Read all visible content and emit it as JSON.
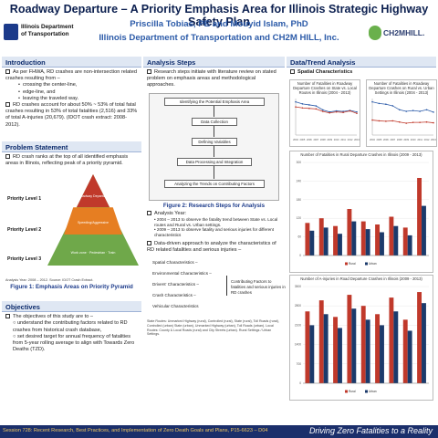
{
  "header": {
    "title": "Roadway Departure – A Priority Emphasis Area for Illinois Strategic Highway Safety Plan",
    "authors": "Priscilla Tobias, PE and Mouyid Islam, PhD",
    "affiliation": "Illinois Department of Transportation and CH2M HILL, Inc.",
    "logo_left_line1": "Illinois Department",
    "logo_left_line2": "of Transportation",
    "logo_right": "CH2MHILL."
  },
  "introduction": {
    "heading": "Introduction",
    "p1": "As per FHWA, RD crashes are non-intersection related crashes resulting from –",
    "bullets": [
      "crossing the center-line,",
      "edge-line, and",
      "leaving the traveled way."
    ],
    "p2": "RD crashes account for about 50% ~ 53% of total fatal crashes resulting in 53% of total fatalities (2,516) and 33% of total A-injuries (20,679). (IDOT crash extract: 2008-2012)."
  },
  "problem": {
    "heading": "Problem Statement",
    "p1": "RD crash ranks at the top of all identified emphasis areas in Illinois, reflecting peak of a priority pyramid.",
    "level1": "Priority Level 1",
    "level2": "Priority Level 2",
    "level3": "Priority Level 3",
    "pyr_top": "Roadway Departure",
    "pyr_mid": "Speeding/Aggressive",
    "pyr_base": "Work zone · Pedestrian · Train",
    "source": "Analysis Year: 2008 – 2012. Source: IDOT Crash Extract.",
    "figure_caption": "Figure 1: Emphasis Areas on Priority Pyramid"
  },
  "objectives": {
    "heading": "Objectives",
    "intro": "The objectives of this study are to –",
    "o1": "understand the contributing factors related to RD crashes from historical crash database,",
    "o2": "set desired target for annual frequency of fatalities from 5-year rolling average to align with Towards Zero Deaths (TZD)."
  },
  "analysis": {
    "heading": "Analysis Steps",
    "p1": "Research steps initiate with literature review on stated problem on emphasis areas and methodological approaches.",
    "steps": [
      "Identifying the Potential Emphasis Area",
      "Data Collection",
      "Defining Variables",
      "Data Processing and Integration",
      "Analyzing the Trends on Contributing Factors"
    ],
    "figure_caption": "Figure 2: Research Steps for Analysis",
    "year_head": "Analysis Year:",
    "year_bullets": [
      "2004 – 2013 to observe the fatality trend between State vs. Local routes and Rural vs. Urban settings.",
      "2009 – 2013 to observe fatality and serious injuries for different characteristics"
    ],
    "driven": "Data-driven approach to analyze the characteristics of RD related fatalities and serious injuries –",
    "characteristics": [
      "Spatial Characteristics –",
      "Environmental Characteristics –",
      "Drivers' Characteristics –",
      "Crash Characteristics –",
      "Vehicular Characteristics"
    ],
    "contributing": "Contributing Factors to fatalities and serious injuries in RD crashes",
    "notes": "State Routes: Unmarked Highway (rural), Controlled (rural), State (rural), Toll Roads (rural), Controlled (urban) State (urban), Unmarked Highway (urban), Toll Roads (urban). Local Routes: County & Local Roads (rural) and City Streets (urban). Rural Settings / Urban Settings."
  },
  "trend": {
    "heading": "Data/Trend Analysis",
    "sub": "Spatial Characteristics"
  },
  "chart_data": [
    {
      "type": "line",
      "title": "Number of Fatalities in Roadway Departure Crashes on State vs. Local Routes in Illinois (2004 - 2013)",
      "x": [
        "2004",
        "2005",
        "2006",
        "2007",
        "2008",
        "2009",
        "2010",
        "2011",
        "2012",
        "2013"
      ],
      "series": [
        {
          "name": "State",
          "values": [
            330,
            310,
            300,
            290,
            250,
            230,
            240,
            235,
            245,
            230
          ]
        },
        {
          "name": "Local",
          "values": [
            280,
            270,
            265,
            260,
            235,
            220,
            230,
            225,
            240,
            215
          ]
        }
      ]
    },
    {
      "type": "line",
      "title": "Number of Fatalities in Roadway Departure Crashes on Rural vs. Urban Settings in Illinois (2004 - 2013)",
      "x": [
        "2004",
        "2005",
        "2006",
        "2007",
        "2008",
        "2009",
        "2010",
        "2011",
        "2012",
        "2013"
      ],
      "series": [
        {
          "name": "Rural",
          "values": [
            420,
            400,
            390,
            370,
            320,
            300,
            310,
            300,
            320,
            290
          ]
        },
        {
          "name": "Urban",
          "values": [
            190,
            180,
            175,
            180,
            165,
            150,
            160,
            160,
            165,
            155
          ]
        }
      ]
    },
    {
      "type": "bar",
      "title": "Number of Fatalities in Rural Departure Crashes in Illinois (2009 - 2013)",
      "categories": [
        "A",
        "B",
        "C",
        "D",
        "E",
        "F",
        "G",
        "H",
        "I"
      ],
      "series": [
        {
          "name": "Rural",
          "values": [
            105,
            120,
            95,
            150,
            110,
            100,
            125,
            90,
            250
          ]
        },
        {
          "name": "Urban",
          "values": [
            80,
            90,
            70,
            110,
            85,
            75,
            95,
            65,
            160
          ]
        }
      ],
      "ylim": [
        0,
        300
      ]
    },
    {
      "type": "bar",
      "title": "Number of A-injuries in Road Departure Crashes in Illinois (2009 - 2013)",
      "categories": [
        "A",
        "B",
        "C",
        "D",
        "E",
        "F",
        "G",
        "H",
        "I"
      ],
      "series": [
        {
          "name": "Rural",
          "values": [
            2600,
            3000,
            2400,
            3200,
            2800,
            2500,
            3100,
            2300,
            3300
          ]
        },
        {
          "name": "Urban",
          "values": [
            2100,
            2500,
            2000,
            2700,
            2300,
            2100,
            2600,
            1900,
            2900
          ]
        }
      ],
      "ylim": [
        0,
        3500
      ]
    }
  ],
  "footer": {
    "left": "Session 728: Recent Research, Best Practices, and Implementation of Zero Death Goals and Plans, P15-6623 – D04",
    "right": "Driving Zero Fatalities to a Reality"
  },
  "colors": {
    "navy": "#1b2f6b",
    "accent_blue": "#2b5aa8",
    "bar_red": "#c0392b",
    "bar_navy": "#1b3a6b"
  }
}
